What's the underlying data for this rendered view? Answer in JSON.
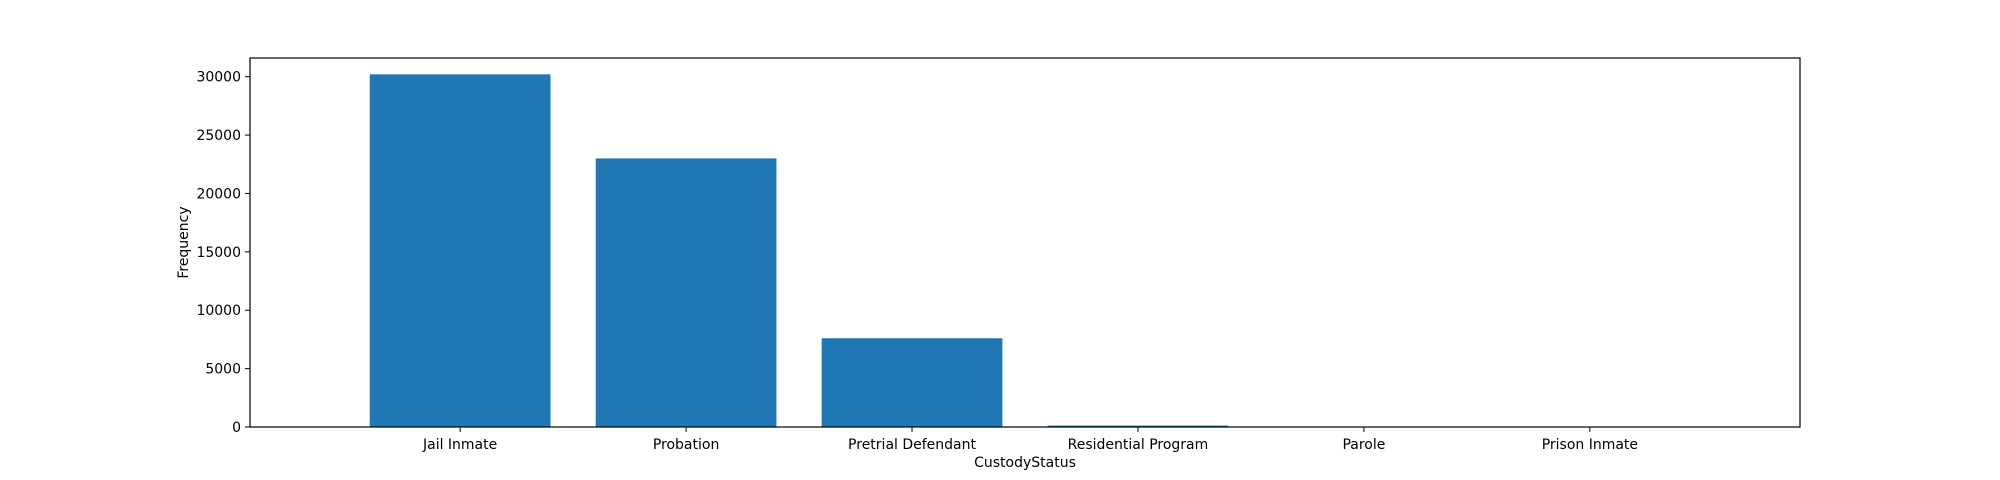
{
  "chart_data": {
    "type": "bar",
    "title": "",
    "xlabel": "CustodyStatus",
    "ylabel": "Frequency",
    "categories": [
      "Jail Inmate",
      "Probation",
      "Pretrial Defendant",
      "Residential Program",
      "Parole",
      "Prison Inmate"
    ],
    "values": [
      30200,
      23000,
      7600,
      120,
      10,
      5
    ],
    "ylim": [
      0,
      31600
    ],
    "yticks": [
      0,
      5000,
      10000,
      15000,
      20000,
      25000,
      30000
    ],
    "grid": false,
    "legend": "none",
    "bar_color": "#1f77b4"
  }
}
